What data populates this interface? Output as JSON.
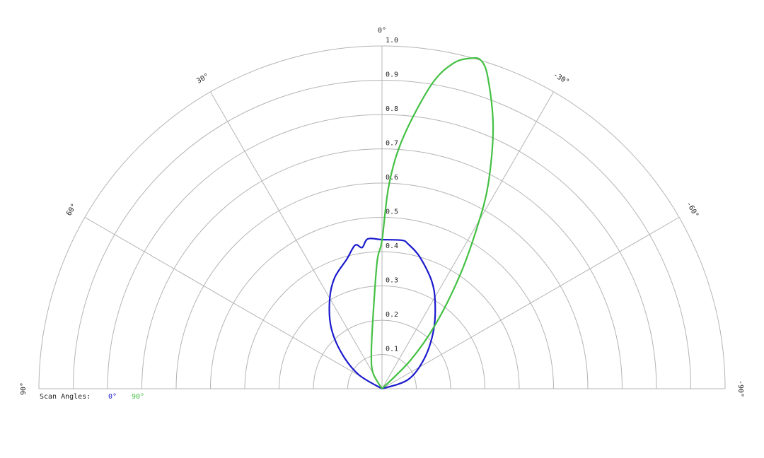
{
  "chart_data": {
    "type": "polar",
    "title": "",
    "angle_unit": "deg",
    "angle_zero": "top",
    "angle_direction": "positive to the left",
    "angle_range": [
      -90,
      90
    ],
    "angle_ticks": [
      90,
      60,
      30,
      0,
      -30,
      -60,
      -90
    ],
    "angle_tick_labels": [
      "90°",
      "60°",
      "30°",
      "0°",
      "-30°",
      "-60°",
      "-90°"
    ],
    "r_range": [
      0,
      1.0
    ],
    "r_ticks": [
      0.1,
      0.2,
      0.3,
      0.4,
      0.5,
      0.6,
      0.7,
      0.8,
      0.9,
      1.0
    ],
    "r_tick_labels": [
      "0.1",
      "0.2",
      "0.3",
      "0.4",
      "0.5",
      "0.6",
      "0.7",
      "0.8",
      "0.9",
      "1.0"
    ],
    "grid": true,
    "legend": {
      "title": "Scan Angles:",
      "placement": "bottom-left"
    },
    "series": [
      {
        "name": "0°",
        "color": "#1a1acc",
        "points": [
          [
            80,
            0
          ],
          [
            58.8,
            0.08
          ],
          [
            48.7,
            0.156
          ],
          [
            39.6,
            0.233
          ],
          [
            30.2,
            0.303
          ],
          [
            23.1,
            0.352
          ],
          [
            15.3,
            0.391
          ],
          [
            10.6,
            0.426
          ],
          [
            8.0,
            0.416
          ],
          [
            5.4,
            0.439
          ],
          [
            0,
            0.435
          ],
          [
            -7.6,
            0.437
          ],
          [
            -10.2,
            0.429
          ],
          [
            -15.8,
            0.401
          ],
          [
            -24.6,
            0.347
          ],
          [
            -31.4,
            0.297
          ],
          [
            -41.3,
            0.228
          ],
          [
            -54.4,
            0.152
          ],
          [
            -70.6,
            0.081
          ],
          [
            -80,
            0
          ]
        ]
      },
      {
        "name": "90°",
        "color": "#44c044",
        "points": [
          [
            40,
            0
          ],
          [
            29.5,
            0.054
          ],
          [
            16.7,
            0.108
          ],
          [
            7.6,
            0.202
          ],
          [
            2.2,
            0.371
          ],
          [
            0,
            0.433
          ],
          [
            -2.0,
            0.598
          ],
          [
            -4.8,
            0.735
          ],
          [
            -9.2,
            0.898
          ],
          [
            -12.3,
            0.971
          ],
          [
            -15,
            0.998
          ],
          [
            -16.8,
            1.0
          ],
          [
            -18.8,
            0.958
          ],
          [
            -23,
            0.829
          ],
          [
            -27.4,
            0.673
          ],
          [
            -30.4,
            0.55
          ],
          [
            -34.5,
            0.4
          ],
          [
            -39.8,
            0.242
          ],
          [
            -45,
            0.117
          ],
          [
            -50,
            0
          ]
        ]
      }
    ]
  }
}
